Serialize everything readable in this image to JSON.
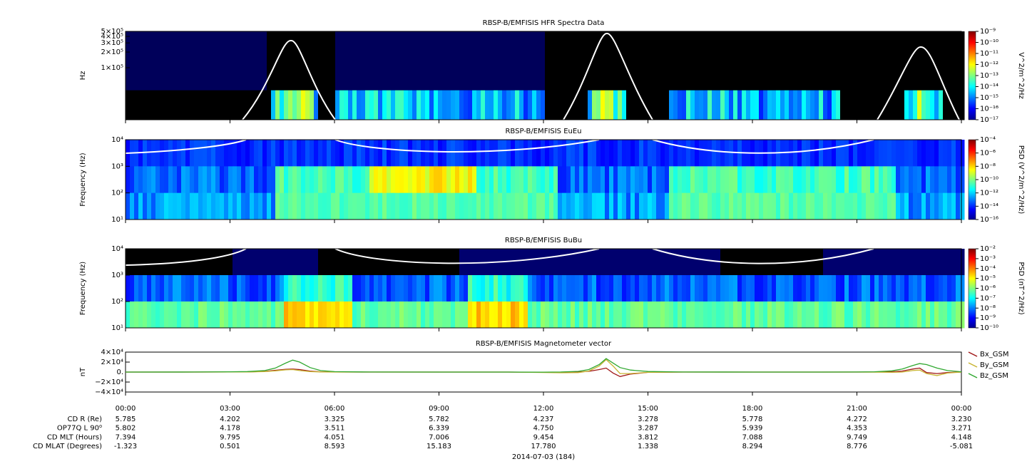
{
  "chart_data": [
    {
      "type": "spectrogram",
      "title": "RBSP-B/EMFISIS  HFR Spectra Data",
      "ylabel": "Hz",
      "log_y": true,
      "xlim": [
        0,
        24
      ],
      "ylim": [
        10000,
        500000
      ],
      "yticks": [
        {
          "value": 500000,
          "label": "5×10⁵"
        },
        {
          "value": 400000,
          "label": "4×10⁵"
        },
        {
          "value": 300000,
          "label": "3×10⁵"
        },
        {
          "value": 200000,
          "label": "2×10⁵"
        },
        {
          "value": 100000,
          "label": "1×10⁵"
        }
      ],
      "colorbar_label": "V^2/m^2/Hz",
      "clim": [
        1e-17,
        1e-09
      ],
      "cticks": [
        {
          "value": 1e-09,
          "label": "10⁻⁹"
        },
        {
          "value": 1e-10,
          "label": "10⁻¹⁰"
        },
        {
          "value": 1e-11,
          "label": "10⁻¹¹"
        },
        {
          "value": 1e-12,
          "label": "10⁻¹²"
        },
        {
          "value": 1e-13,
          "label": "10⁻¹³"
        },
        {
          "value": 1e-14,
          "label": "10⁻¹⁴"
        },
        {
          "value": 1e-15,
          "label": "10⁻¹⁵"
        },
        {
          "value": 1e-16,
          "label": "10⁻¹⁶"
        },
        {
          "value": 1e-17,
          "label": "10⁻¹⁷"
        }
      ]
    },
    {
      "type": "spectrogram",
      "title": "RBSP-B/EMFISIS  EuEu",
      "ylabel": "Frequency (Hz)",
      "log_y": true,
      "xlim": [
        0,
        24
      ],
      "ylim": [
        10,
        10000
      ],
      "yticks": [
        {
          "value": 10000,
          "label": "10⁴"
        },
        {
          "value": 1000,
          "label": "10³"
        },
        {
          "value": 100,
          "label": "10²"
        },
        {
          "value": 10,
          "label": "10¹"
        }
      ],
      "colorbar_label": "PSD (V^2/m^2/Hz)",
      "clim": [
        1e-16,
        0.0001
      ],
      "cticks": [
        {
          "value": 0.0001,
          "label": "10⁻⁴"
        },
        {
          "value": 1e-06,
          "label": "10⁻⁶"
        },
        {
          "value": 1e-08,
          "label": "10⁻⁸"
        },
        {
          "value": 1e-10,
          "label": "10⁻¹⁰"
        },
        {
          "value": 1e-12,
          "label": "10⁻¹²"
        },
        {
          "value": 1e-14,
          "label": "10⁻¹⁴"
        },
        {
          "value": 1e-16,
          "label": "10⁻¹⁶"
        }
      ]
    },
    {
      "type": "spectrogram",
      "title": "RBSP-B/EMFISIS  BuBu",
      "ylabel": "Frequency (Hz)",
      "log_y": true,
      "xlim": [
        0,
        24
      ],
      "ylim": [
        10,
        10000
      ],
      "yticks": [
        {
          "value": 10000,
          "label": "10⁴"
        },
        {
          "value": 1000,
          "label": "10³"
        },
        {
          "value": 100,
          "label": "10²"
        },
        {
          "value": 10,
          "label": "10¹"
        }
      ],
      "colorbar_label": "PSD (nT^2/Hz)",
      "clim": [
        1e-10,
        0.01
      ],
      "cticks": [
        {
          "value": 0.01,
          "label": "10⁻²"
        },
        {
          "value": 0.001,
          "label": "10⁻³"
        },
        {
          "value": 0.0001,
          "label": "10⁻⁴"
        },
        {
          "value": 1e-05,
          "label": "10⁻⁵"
        },
        {
          "value": 1e-06,
          "label": "10⁻⁶"
        },
        {
          "value": 1e-07,
          "label": "10⁻⁷"
        },
        {
          "value": 1e-08,
          "label": "10⁻⁸"
        },
        {
          "value": 1e-09,
          "label": "10⁻⁹"
        },
        {
          "value": 1e-10,
          "label": "10⁻¹⁰"
        }
      ]
    },
    {
      "type": "line",
      "title": "RBSP-B/EMFISIS  Magnetometer vector",
      "ylabel": "nT",
      "xlim": [
        0,
        24
      ],
      "ylim": [
        -40000,
        40000
      ],
      "yticks": [
        {
          "value": 40000,
          "label": "4×10⁴"
        },
        {
          "value": 20000,
          "label": "2×10⁴"
        },
        {
          "value": 0,
          "label": "0."
        },
        {
          "value": -20000,
          "label": "−2×10⁴"
        },
        {
          "value": -40000,
          "label": "−4×10⁴"
        }
      ],
      "xticks": [
        {
          "value": 0,
          "label": "00:00"
        },
        {
          "value": 3,
          "label": "03:00"
        },
        {
          "value": 6,
          "label": "06:00"
        },
        {
          "value": 9,
          "label": "09:00"
        },
        {
          "value": 12,
          "label": "12:00"
        },
        {
          "value": 15,
          "label": "15:00"
        },
        {
          "value": 18,
          "label": "18:00"
        },
        {
          "value": 21,
          "label": "21:00"
        },
        {
          "value": 24,
          "label": "00:00"
        }
      ],
      "xlabel": "2014-07-03 (184)",
      "x": [
        0,
        2,
        3,
        3.5,
        4,
        4.3,
        4.6,
        4.8,
        5.0,
        5.3,
        5.6,
        6,
        7,
        9,
        11,
        12,
        12.5,
        13,
        13.3,
        13.6,
        13.8,
        14.0,
        14.2,
        14.5,
        15,
        16,
        18,
        20,
        21,
        21.5,
        22,
        22.3,
        22.6,
        22.8,
        23.0,
        23.3,
        23.6,
        24
      ],
      "series": [
        {
          "name": "Bx_GSM",
          "color": "#a01818",
          "values": [
            0,
            0,
            100,
            300,
            1500,
            3500,
            5500,
            6000,
            5000,
            2000,
            600,
            100,
            0,
            0,
            0,
            -500,
            -400,
            200,
            1500,
            5000,
            8000,
            -2000,
            -9000,
            -4000,
            -500,
            0,
            0,
            0,
            0,
            100,
            700,
            2000,
            6000,
            8000,
            -1000,
            -3000,
            -1000,
            0
          ]
        },
        {
          "name": "By_GSM",
          "color": "#c8b432",
          "values": [
            0,
            0,
            100,
            300,
            1000,
            2500,
            4500,
            5000,
            3000,
            1000,
            300,
            0,
            0,
            0,
            0,
            -800,
            -1500,
            -1000,
            2000,
            12000,
            25000,
            12000,
            -3000,
            -3000,
            -500,
            0,
            0,
            0,
            0,
            -200,
            -500,
            0,
            3000,
            4000,
            -3000,
            -7000,
            -2000,
            0
          ]
        },
        {
          "name": "Bz_GSM",
          "color": "#30a830",
          "values": [
            0,
            200,
            500,
            1000,
            3000,
            8000,
            18000,
            24000,
            20000,
            9000,
            3000,
            800,
            100,
            0,
            0,
            -200,
            200,
            1500,
            5000,
            15000,
            27000,
            18000,
            9000,
            4000,
            1200,
            200,
            0,
            0,
            200,
            600,
            2500,
            6000,
            13000,
            17000,
            15000,
            8000,
            3000,
            500
          ]
        }
      ]
    }
  ],
  "ephemeris": {
    "rows": [
      {
        "label": "CD R (Re)",
        "values": [
          "5.785",
          "4.202",
          "3.325",
          "5.782",
          "4.237",
          "3.278",
          "5.778",
          "4.272",
          "3.230"
        ]
      },
      {
        "label": "OP77Q L 90⁰",
        "values": [
          "5.802",
          "4.178",
          "3.511",
          "6.339",
          "4.750",
          "3.287",
          "5.939",
          "4.353",
          "3.271"
        ]
      },
      {
        "label": "CD MLT (Hours)",
        "values": [
          "7.394",
          "9.795",
          "4.051",
          "7.006",
          "9.454",
          "3.812",
          "7.088",
          "9.749",
          "4.148"
        ]
      },
      {
        "label": "CD MLAT (Degrees)",
        "values": [
          "-1.323",
          "0.501",
          "8.593",
          "15.183",
          "17.780",
          "1.338",
          "8.294",
          "8.776",
          "-5.081"
        ]
      }
    ]
  }
}
